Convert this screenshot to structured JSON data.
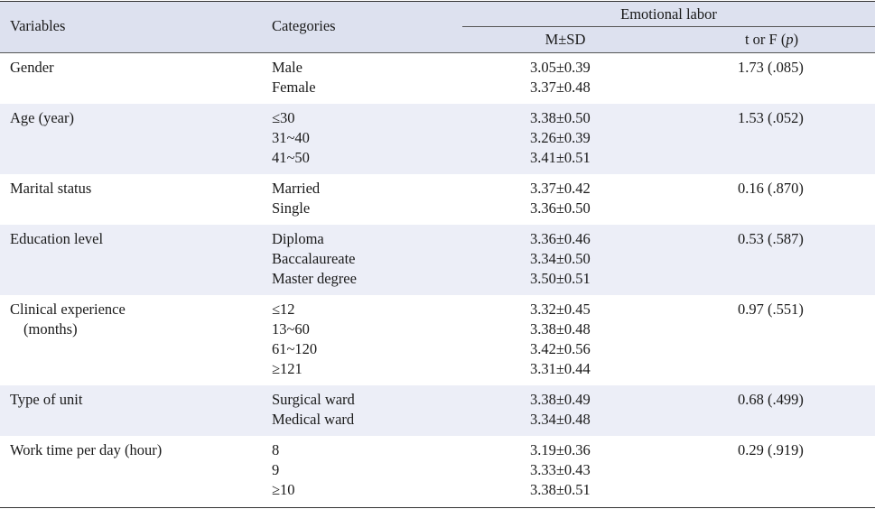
{
  "header": {
    "variables": "Variables",
    "categories": "Categories",
    "group": "Emotional labor",
    "msd": "M±SD",
    "tf_prefix": "t or F (",
    "tf_p": "p",
    "tf_suffix": ")"
  },
  "rows": [
    {
      "variable": [
        "Gender"
      ],
      "categories": [
        "Male",
        "Female"
      ],
      "msd": [
        "3.05±0.39",
        "3.37±0.48"
      ],
      "tf": "1.73 (.085)"
    },
    {
      "variable": [
        "Age (year)"
      ],
      "categories": [
        "≤30",
        "31~40",
        "41~50"
      ],
      "msd": [
        "3.38±0.50",
        "3.26±0.39",
        "3.41±0.51"
      ],
      "tf": "1.53 (.052)"
    },
    {
      "variable": [
        "Marital status"
      ],
      "categories": [
        "Married",
        "Single"
      ],
      "msd": [
        "3.37±0.42",
        "3.36±0.50"
      ],
      "tf": "0.16 (.870)"
    },
    {
      "variable": [
        "Education level"
      ],
      "categories": [
        "Diploma",
        "Baccalaureate",
        "Master degree"
      ],
      "msd": [
        "3.36±0.46",
        "3.34±0.50",
        "3.50±0.51"
      ],
      "tf": "0.53 (.587)"
    },
    {
      "variable": [
        "Clinical experience",
        "(months)"
      ],
      "categories": [
        "≤12",
        "13~60",
        "61~120",
        "≥121"
      ],
      "msd": [
        "3.32±0.45",
        "3.38±0.48",
        "3.42±0.56",
        "3.31±0.44"
      ],
      "tf": "0.97 (.551)"
    },
    {
      "variable": [
        "Type of unit"
      ],
      "categories": [
        "Surgical ward",
        "Medical ward"
      ],
      "msd": [
        "3.38±0.49",
        "3.34±0.48"
      ],
      "tf": "0.68 (.499)"
    },
    {
      "variable": [
        "Work time per day (hour)"
      ],
      "categories": [
        "8",
        "9",
        "≥10"
      ],
      "msd": [
        "3.19±0.36",
        "3.33±0.43",
        "3.38±0.51"
      ],
      "tf": "0.29 (.919)"
    }
  ]
}
